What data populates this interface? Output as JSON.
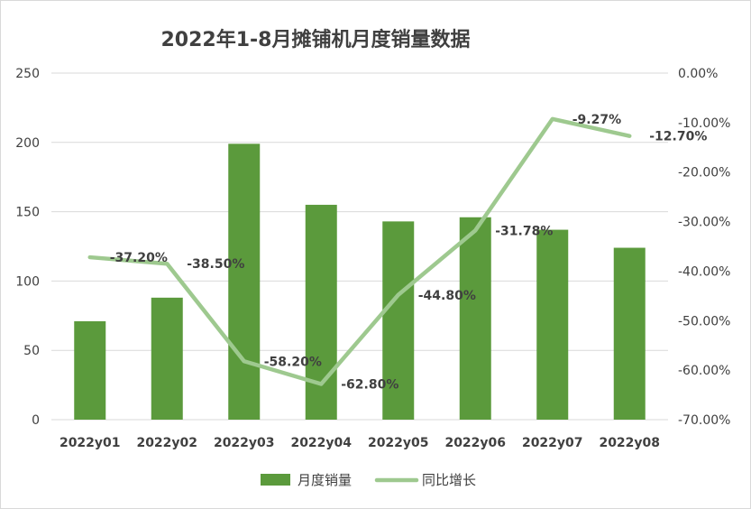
{
  "chart_data": {
    "type": "bar+line",
    "title": "2022年1-8月摊铺机月度销量数据",
    "categories": [
      "2022y01",
      "2022y02",
      "2022y03",
      "2022y04",
      "2022y05",
      "2022y06",
      "2022y07",
      "2022y08"
    ],
    "series": [
      {
        "name": "月度销量",
        "type": "bar",
        "axis": "left",
        "color": "#5b9a3c",
        "values": [
          71,
          88,
          199,
          155,
          143,
          146,
          137,
          124
        ]
      },
      {
        "name": "同比增长",
        "type": "line",
        "axis": "right",
        "color": "#9ec98f",
        "values": [
          -0.372,
          -0.385,
          -0.582,
          -0.628,
          -0.448,
          -0.3178,
          -0.0927,
          -0.127
        ],
        "labels": [
          "-37.20%",
          "-38.50%",
          "-58.20%",
          "-62.80%",
          "-44.80%",
          "-31.78%",
          "-9.27%",
          "-12.70%"
        ]
      }
    ],
    "y_left": {
      "min": 0,
      "max": 250,
      "ticks": [
        "0",
        "50",
        "100",
        "150",
        "200",
        "250"
      ]
    },
    "y_right": {
      "min": -0.7,
      "max": 0,
      "ticks": [
        "-70.00%",
        "-60.00%",
        "-50.00%",
        "-40.00%",
        "-30.00%",
        "-20.00%",
        "-10.00%",
        "0.00%"
      ]
    },
    "grid": true,
    "legend_position": "bottom"
  }
}
